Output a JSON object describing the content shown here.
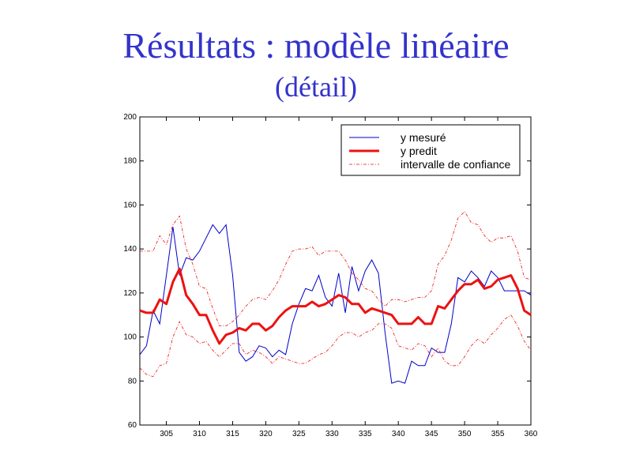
{
  "slide": {
    "title": "Résultats : modèle linéaire",
    "subtitle": "(détail)"
  },
  "colors": {
    "title": "#3333cc",
    "measured": "#0000cc",
    "predicted": "#ee1111",
    "confidence": "#ee1111"
  },
  "chart_data": {
    "type": "line",
    "title": "",
    "xlabel": "",
    "ylabel": "",
    "xlim": [
      301,
      360
    ],
    "ylim": [
      60,
      200
    ],
    "xticks": [
      305,
      310,
      315,
      320,
      325,
      330,
      335,
      340,
      345,
      350,
      355,
      360
    ],
    "yticks": [
      60,
      80,
      100,
      120,
      140,
      160,
      180,
      200
    ],
    "grid": false,
    "legend_position": "top-right",
    "x": [
      301,
      302,
      303,
      304,
      305,
      306,
      307,
      308,
      309,
      310,
      311,
      312,
      313,
      314,
      315,
      316,
      317,
      318,
      319,
      320,
      321,
      322,
      323,
      324,
      325,
      326,
      327,
      328,
      329,
      330,
      331,
      332,
      333,
      334,
      335,
      336,
      337,
      338,
      339,
      340,
      341,
      342,
      343,
      344,
      345,
      346,
      347,
      348,
      349,
      350,
      351,
      352,
      353,
      354,
      355,
      356,
      357,
      358,
      359,
      360
    ],
    "series": [
      {
        "name": "y mesuré",
        "style": "thin-solid",
        "values": [
          92,
          96,
          112,
          106,
          128,
          150,
          128,
          136,
          135,
          139,
          145,
          151,
          147,
          151,
          128,
          93,
          89,
          91,
          96,
          95,
          91,
          94,
          92,
          106,
          115,
          122,
          121,
          128,
          118,
          114,
          129,
          111,
          132,
          121,
          130,
          135,
          129,
          102,
          79,
          80,
          79,
          89,
          87,
          87,
          95,
          93,
          93,
          106,
          127,
          125,
          130,
          127,
          123,
          130,
          127,
          121,
          121,
          121,
          121,
          119
        ]
      },
      {
        "name": "y predit",
        "style": "thick-solid",
        "values": [
          112,
          111,
          111,
          117,
          115,
          125,
          131,
          119,
          115,
          110,
          110,
          103,
          97,
          101,
          102,
          104,
          103,
          106,
          106,
          103,
          105,
          109,
          112,
          114,
          114,
          114,
          116,
          114,
          115,
          117,
          119,
          118,
          115,
          115,
          111,
          113,
          112,
          111,
          110,
          106,
          106,
          106,
          109,
          106,
          106,
          114,
          113,
          117,
          121,
          124,
          124,
          126,
          122,
          123,
          126,
          127,
          128,
          122,
          112,
          110
        ]
      },
      {
        "name": "intervalle de confiance",
        "style": "thin-dashdot",
        "values": [
          139,
          139,
          139,
          146,
          142,
          151,
          155,
          140,
          133,
          123,
          122,
          113,
          105,
          105,
          107,
          110,
          114,
          117,
          118,
          117,
          121,
          126,
          133,
          139,
          140,
          140,
          141,
          137,
          139,
          139,
          139,
          135,
          129,
          126,
          122,
          121,
          117,
          114,
          117,
          117,
          116,
          117,
          118,
          118,
          121,
          133,
          137,
          144,
          154,
          157,
          152,
          151,
          146,
          143,
          145,
          145,
          146,
          139,
          127,
          126
        ]
      },
      {
        "name": "",
        "style": "thin-dashdot",
        "values": [
          86,
          83,
          82,
          87,
          88,
          100,
          107,
          101,
          100,
          97,
          98,
          94,
          91,
          94,
          97,
          97,
          92,
          94,
          93,
          91,
          88,
          91,
          90,
          89,
          88,
          88,
          90,
          92,
          93,
          96,
          100,
          102,
          102,
          100,
          102,
          103,
          106,
          106,
          104,
          96,
          95,
          94,
          97,
          96,
          91,
          95,
          89,
          87,
          87,
          91,
          96,
          99,
          97,
          101,
          104,
          108,
          110,
          105,
          98,
          94
        ]
      }
    ]
  }
}
